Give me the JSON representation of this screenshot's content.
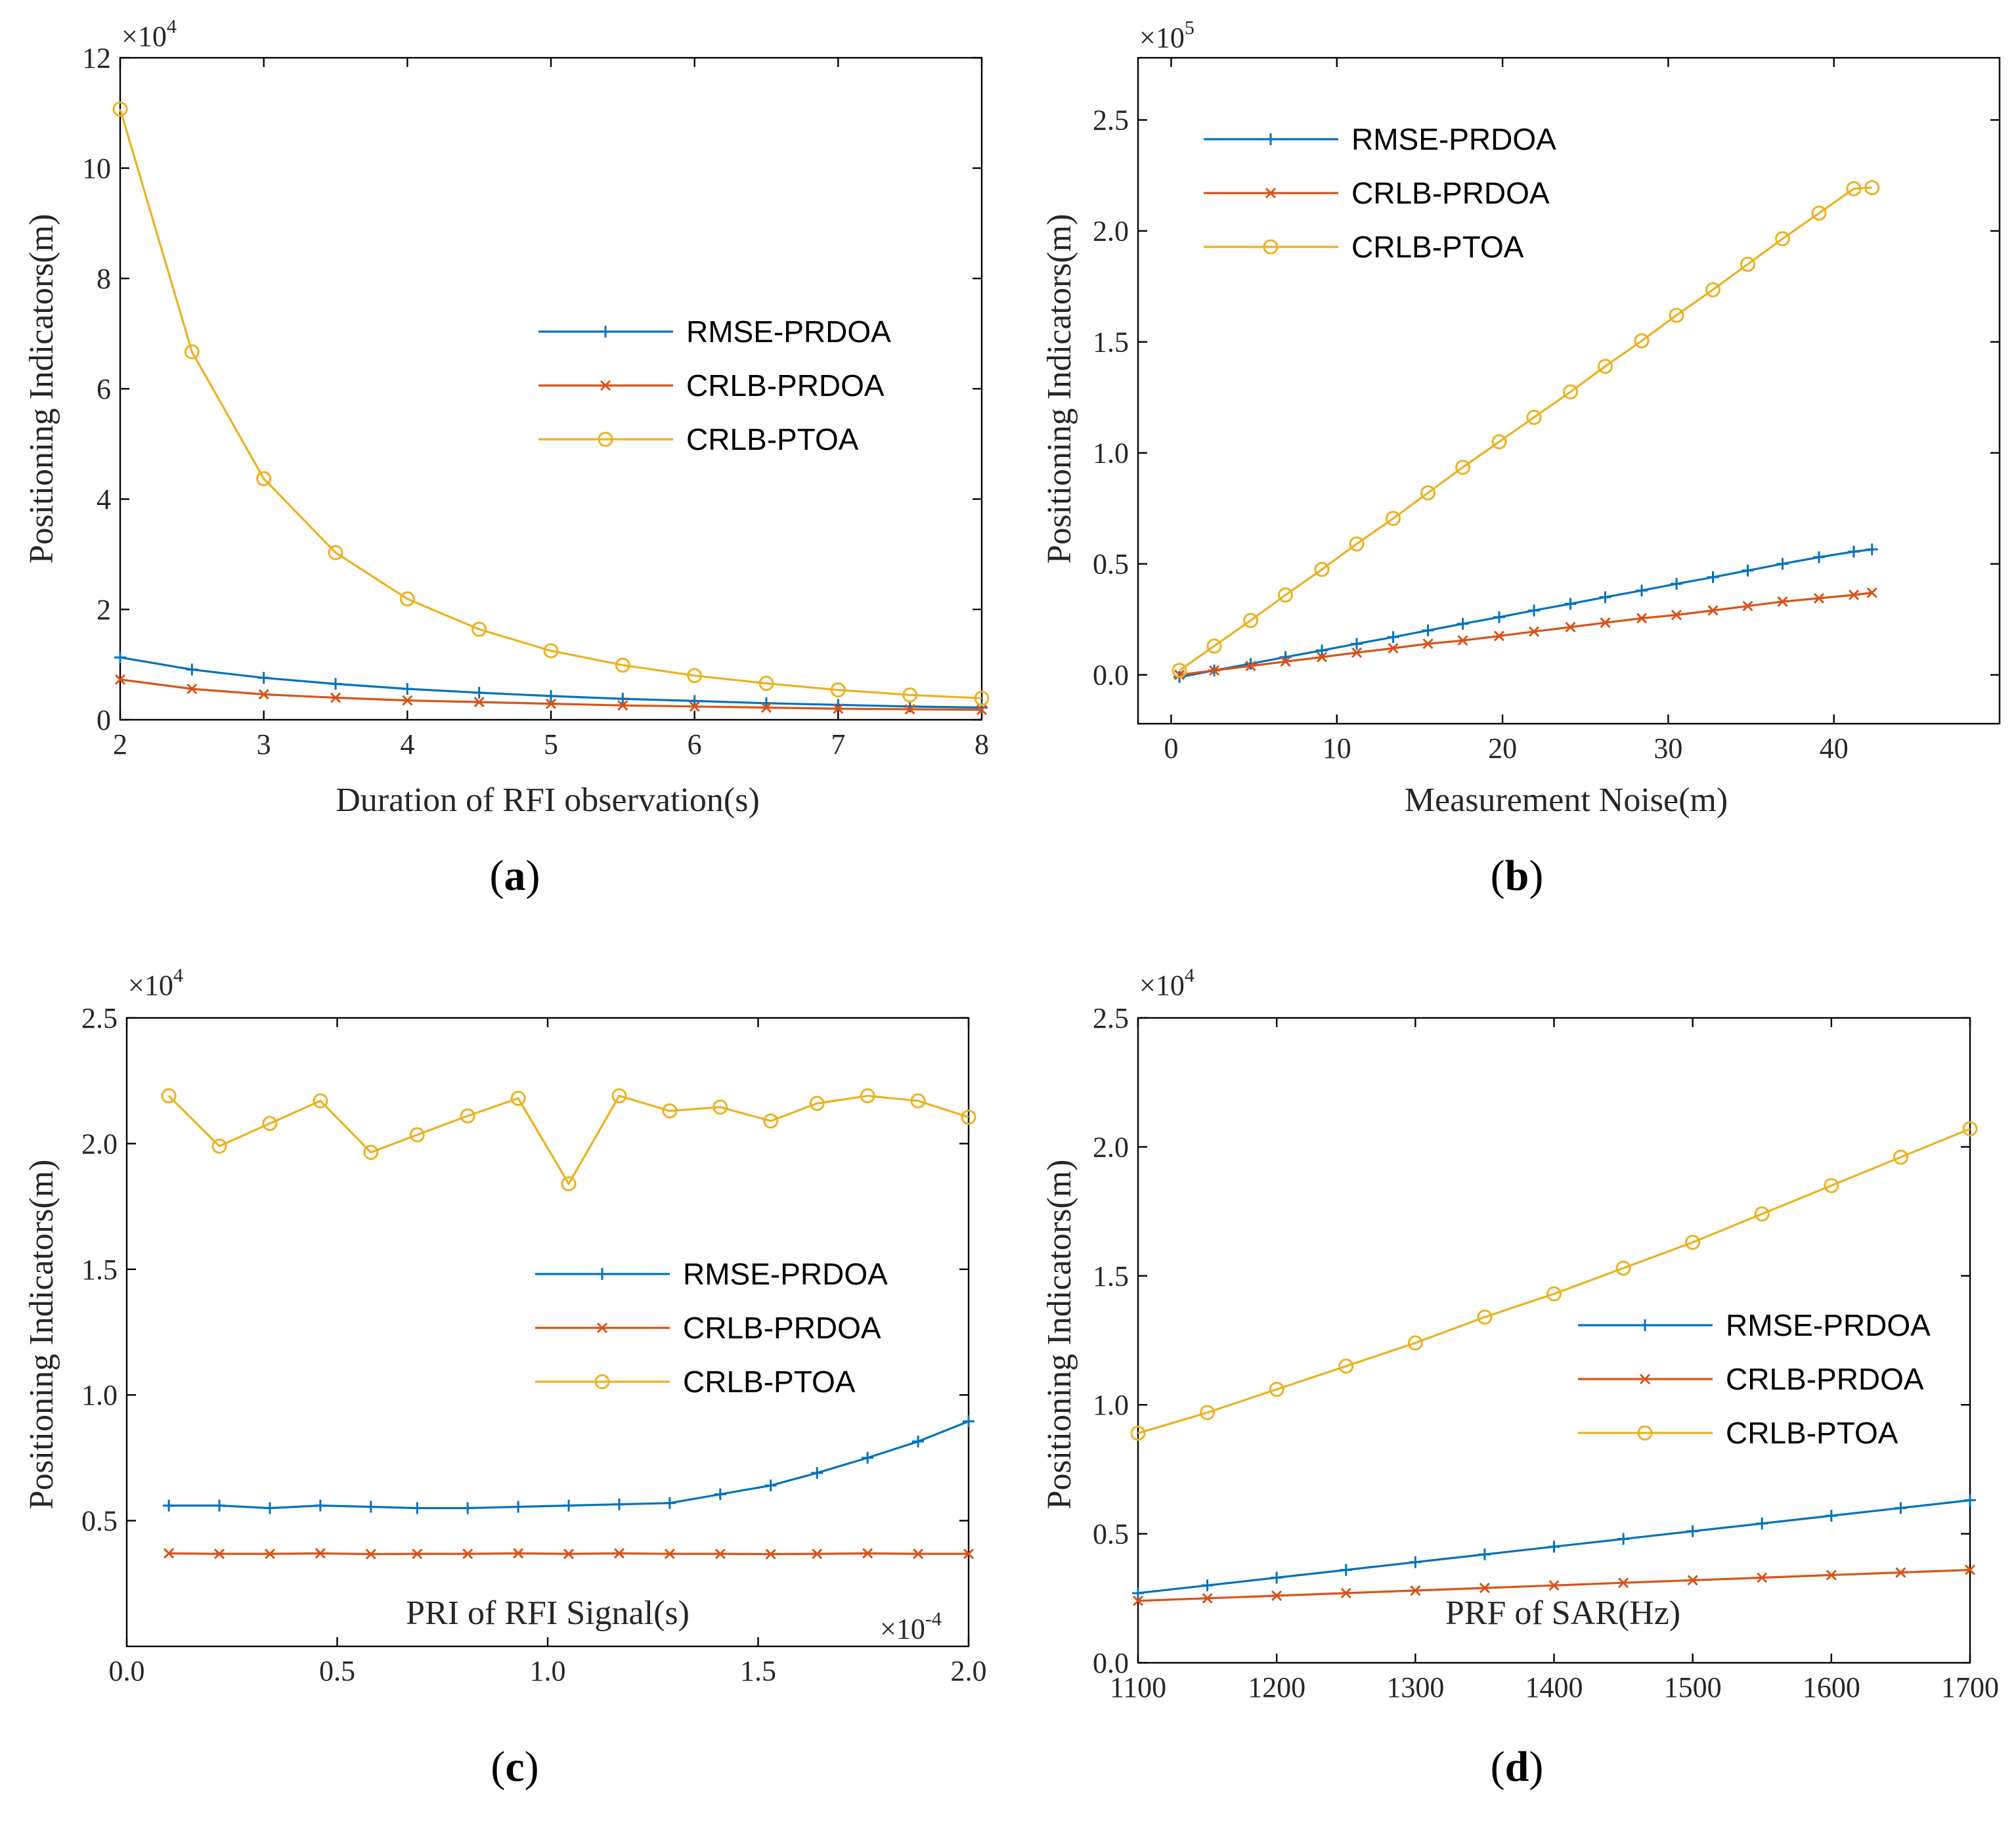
{
  "chart_data": [
    {
      "type": "line",
      "panel_label": "(a)",
      "panel_letter": "a",
      "xlabel": "Duration of RFI observation(s)",
      "ylabel": "Positioning Indicators(m)",
      "x_multiplier": "",
      "y_multiplier": "×10",
      "y_multiplier_exp": "4",
      "xlim": [
        2,
        8
      ],
      "ylim": [
        0,
        12
      ],
      "xticks": [
        2,
        3,
        4,
        5,
        6,
        7,
        8
      ],
      "xtick_labels": [
        "2",
        "3",
        "4",
        "5",
        "6",
        "7",
        "8"
      ],
      "yticks": [
        0,
        2,
        4,
        6,
        8,
        10,
        12
      ],
      "ytick_labels": [
        "0",
        "2",
        "4",
        "6",
        "8",
        "10",
        "12"
      ],
      "legend_position": "center-right",
      "x": [
        2,
        2.5,
        3,
        3.5,
        4,
        4.5,
        5,
        5.5,
        6,
        6.5,
        7,
        7.5,
        8
      ],
      "series": [
        {
          "name": "RMSE-PRDOA",
          "color": "#0072BD",
          "marker": "plus",
          "values": [
            1.13,
            0.91,
            0.76,
            0.65,
            0.56,
            0.49,
            0.43,
            0.38,
            0.34,
            0.3,
            0.27,
            0.24,
            0.22
          ]
        },
        {
          "name": "CRLB-PRDOA",
          "color": "#D95319",
          "marker": "x",
          "values": [
            0.73,
            0.56,
            0.46,
            0.4,
            0.35,
            0.32,
            0.29,
            0.26,
            0.24,
            0.22,
            0.2,
            0.19,
            0.18
          ]
        },
        {
          "name": "CRLB-PTOA",
          "color": "#EDB120",
          "marker": "circle",
          "values": [
            11.07,
            6.67,
            4.37,
            3.03,
            2.19,
            1.64,
            1.25,
            0.99,
            0.8,
            0.66,
            0.54,
            0.45,
            0.39
          ]
        }
      ]
    },
    {
      "type": "line",
      "panel_label": "(b)",
      "panel_letter": "b",
      "xlabel": "Measurement Noise(m)",
      "ylabel": "Positioning Indicators(m)",
      "x_multiplier": "",
      "y_multiplier": "×10",
      "y_multiplier_exp": "5",
      "xlim": [
        -2,
        50
      ],
      "ylim": [
        -0.22,
        2.78
      ],
      "xticks": [
        0,
        10,
        20,
        30,
        40
      ],
      "xtick_labels": [
        "0",
        "10",
        "20",
        "30",
        "40"
      ],
      "yticks": [
        0,
        0.5,
        1.0,
        1.5,
        2.0,
        2.5
      ],
      "ytick_labels": [
        "0.0",
        "0.5",
        "1.0",
        "1.5",
        "2.0",
        "2.5"
      ],
      "legend_position": "top-left",
      "x": [
        0.5,
        2.6,
        4.8,
        6.9,
        9.1,
        11.2,
        13.4,
        15.5,
        17.6,
        19.8,
        21.9,
        24.1,
        26.2,
        28.4,
        30.5,
        32.7,
        34.8,
        36.9,
        39.1,
        41.2,
        42.3
      ],
      "series": [
        {
          "name": "RMSE-PRDOA",
          "color": "#0072BD",
          "marker": "plus",
          "values": [
            -0.01,
            0.02,
            0.05,
            0.08,
            0.11,
            0.14,
            0.17,
            0.2,
            0.23,
            0.26,
            0.29,
            0.32,
            0.35,
            0.38,
            0.41,
            0.44,
            0.47,
            0.5,
            0.53,
            0.555,
            0.565
          ]
        },
        {
          "name": "CRLB-PRDOA",
          "color": "#D95319",
          "marker": "x",
          "values": [
            0.0,
            0.02,
            0.04,
            0.06,
            0.08,
            0.1,
            0.12,
            0.14,
            0.155,
            0.175,
            0.195,
            0.215,
            0.235,
            0.255,
            0.27,
            0.29,
            0.31,
            0.33,
            0.345,
            0.36,
            0.37
          ]
        },
        {
          "name": "CRLB-PTOA",
          "color": "#EDB120",
          "marker": "circle",
          "values": [
            0.02,
            0.13,
            0.245,
            0.36,
            0.475,
            0.59,
            0.705,
            0.82,
            0.935,
            1.05,
            1.16,
            1.275,
            1.39,
            1.505,
            1.62,
            1.735,
            1.85,
            1.965,
            2.08,
            2.19,
            2.195
          ]
        }
      ]
    },
    {
      "type": "line",
      "panel_label": "(c)",
      "panel_letter": "c",
      "xlabel": "PRI of RFI Signal(s)",
      "ylabel": "Positioning Indicators(m)",
      "x_multiplier": "×10",
      "x_multiplier_exp": "-4",
      "y_multiplier": "×10",
      "y_multiplier_exp": "4",
      "xlim": [
        0,
        2.0
      ],
      "ylim": [
        0,
        2.5
      ],
      "xticks": [
        0,
        0.5,
        1.0,
        1.5,
        2.0
      ],
      "xtick_labels": [
        "0.0",
        "0.5",
        "1.0",
        "1.5",
        "2.0"
      ],
      "yticks": [
        0.5,
        1.0,
        1.5,
        2.0,
        2.5
      ],
      "ytick_labels": [
        "0.5",
        "1.0",
        "1.5",
        "2.0",
        "2.5"
      ],
      "legend_position": "center-right",
      "x": [
        0.1,
        0.22,
        0.34,
        0.46,
        0.58,
        0.69,
        0.81,
        0.93,
        1.05,
        1.17,
        1.29,
        1.41,
        1.53,
        1.64,
        1.76,
        1.88,
        2.0
      ],
      "series": [
        {
          "name": "RMSE-PRDOA",
          "color": "#0072BD",
          "marker": "plus",
          "values": [
            0.56,
            0.56,
            0.55,
            0.56,
            0.555,
            0.55,
            0.55,
            0.555,
            0.56,
            0.565,
            0.57,
            0.605,
            0.64,
            0.69,
            0.75,
            0.815,
            0.895
          ]
        },
        {
          "name": "CRLB-PRDOA",
          "color": "#D95319",
          "marker": "x",
          "values": [
            0.37,
            0.368,
            0.368,
            0.37,
            0.367,
            0.368,
            0.368,
            0.37,
            0.368,
            0.37,
            0.368,
            0.368,
            0.367,
            0.368,
            0.37,
            0.368,
            0.368
          ]
        },
        {
          "name": "CRLB-PTOA",
          "color": "#EDB120",
          "marker": "circle",
          "values": [
            2.19,
            1.99,
            2.08,
            2.17,
            1.965,
            2.035,
            2.11,
            2.18,
            1.84,
            2.19,
            2.13,
            2.145,
            2.09,
            2.16,
            2.19,
            2.17,
            2.105
          ]
        }
      ]
    },
    {
      "type": "line",
      "panel_label": "(d)",
      "panel_letter": "d",
      "xlabel": "PRF of SAR(Hz)",
      "ylabel": "Positioning Indicators(m)",
      "x_multiplier": "",
      "y_multiplier": "×10",
      "y_multiplier_exp": "4",
      "xlim": [
        1100,
        1700
      ],
      "ylim": [
        0,
        2.5
      ],
      "xticks": [
        1100,
        1200,
        1300,
        1400,
        1500,
        1600,
        1700
      ],
      "xtick_labels": [
        "1100",
        "1200",
        "1300",
        "1400",
        "1500",
        "1600",
        "1700"
      ],
      "yticks": [
        0,
        0.5,
        1.0,
        1.5,
        2.0,
        2.5
      ],
      "ytick_labels": [
        "0.0",
        "0.5",
        "1.0",
        "1.5",
        "2.0",
        "2.5"
      ],
      "legend_position": "center-right",
      "x": [
        1100,
        1150,
        1200,
        1250,
        1300,
        1350,
        1400,
        1450,
        1500,
        1550,
        1600,
        1650,
        1700
      ],
      "series": [
        {
          "name": "RMSE-PRDOA",
          "color": "#0072BD",
          "marker": "plus",
          "values": [
            0.27,
            0.3,
            0.33,
            0.36,
            0.39,
            0.42,
            0.45,
            0.48,
            0.51,
            0.54,
            0.57,
            0.6,
            0.63
          ]
        },
        {
          "name": "CRLB-PRDOA",
          "color": "#D95319",
          "marker": "x",
          "values": [
            0.24,
            0.25,
            0.26,
            0.27,
            0.28,
            0.29,
            0.3,
            0.31,
            0.32,
            0.33,
            0.34,
            0.35,
            0.36
          ]
        },
        {
          "name": "CRLB-PTOA",
          "color": "#EDB120",
          "marker": "circle",
          "values": [
            0.89,
            0.97,
            1.06,
            1.15,
            1.24,
            1.34,
            1.43,
            1.53,
            1.63,
            1.74,
            1.85,
            1.96,
            2.07
          ]
        }
      ]
    }
  ]
}
